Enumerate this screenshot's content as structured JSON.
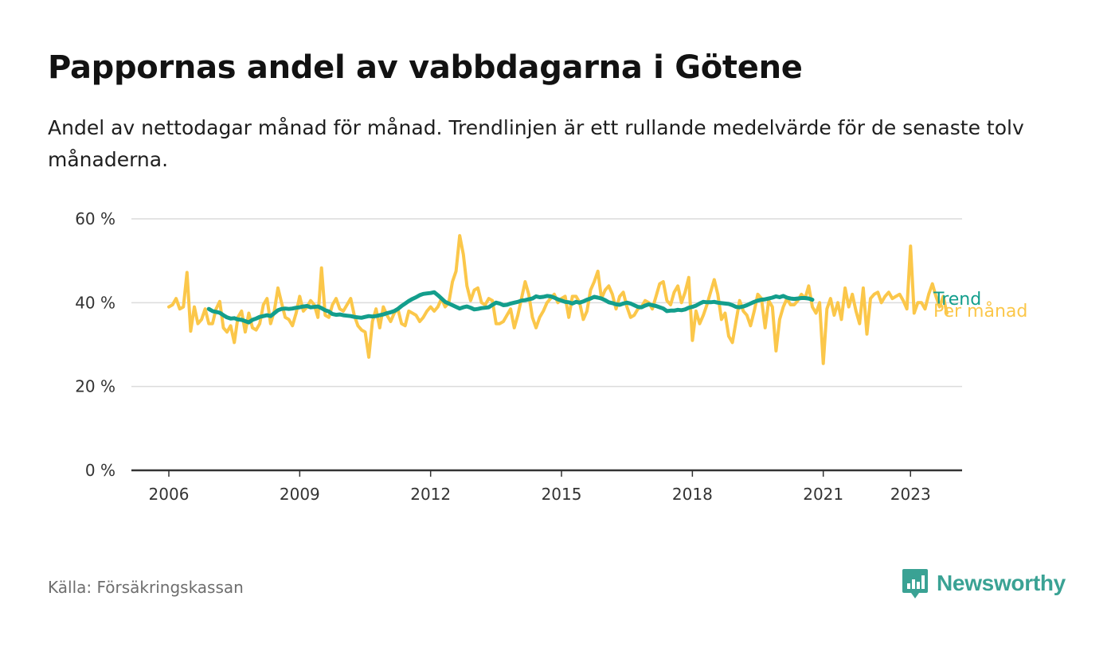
{
  "title": "Pappornas andel av vabbdagarna i Götene",
  "subtitle": "Andel av nettodagar månad för månad. Trendlinjen är ett rullande medelvärde för de senaste tolv månaderna.",
  "source": "Källa: Försäkringskassan",
  "brand": "Newsworthy",
  "colors": {
    "trend": "#139e8c",
    "monthly": "#fbc74a",
    "grid": "#dcdcdc",
    "axis": "#333333",
    "brand": "#3aa294"
  },
  "chart_data": {
    "type": "line",
    "x_start": "2006-01",
    "x_end": "2023-05",
    "ylim": [
      0,
      60
    ],
    "y_ticks": [
      {
        "value": 0,
        "label": "0 %"
      },
      {
        "value": 20,
        "label": "20 %"
      },
      {
        "value": 40,
        "label": "40 %"
      },
      {
        "value": 60,
        "label": "60 %"
      }
    ],
    "x_ticks": [
      {
        "value": "2006-01",
        "label": "2006"
      },
      {
        "value": "2009-01",
        "label": "2009"
      },
      {
        "value": "2012-01",
        "label": "2012"
      },
      {
        "value": "2015-01",
        "label": "2015"
      },
      {
        "value": "2018-01",
        "label": "2018"
      },
      {
        "value": "2021-01",
        "label": "2021"
      },
      {
        "value": "2023-01",
        "label": "2023"
      }
    ],
    "grid": true,
    "series": [
      {
        "name": "Per månad",
        "key": "monthly",
        "start": "2006-01",
        "values": [
          39,
          39.5,
          41,
          38.5,
          39,
          47.2,
          33.2,
          39,
          35,
          36,
          38.5,
          35,
          35,
          38.5,
          40.3,
          34,
          33,
          34.5,
          30.5,
          36.5,
          38,
          33,
          37.5,
          34,
          33.5,
          35,
          39.5,
          41,
          35,
          38,
          43.5,
          40,
          36.5,
          36,
          34.5,
          37.5,
          41.5,
          38,
          39,
          40.5,
          39.5,
          36.5,
          48.3,
          37,
          36.5,
          39.5,
          41,
          38.5,
          38,
          39.5,
          41,
          37,
          34.5,
          33.5,
          33,
          27,
          35.5,
          38.5,
          34,
          39,
          37,
          35.5,
          37.5,
          38.5,
          35,
          34.5,
          38,
          37.5,
          37,
          35.5,
          36.5,
          38,
          39,
          38,
          39,
          41,
          39,
          40,
          45,
          47.5,
          56,
          51.5,
          44,
          40.5,
          43,
          43.5,
          40,
          39.5,
          41,
          40.5,
          35,
          35,
          35.5,
          37,
          38.5,
          34,
          37,
          41,
          45,
          42,
          36.5,
          34,
          36.5,
          38,
          40,
          41,
          42,
          40,
          41,
          41.5,
          36.5,
          41.5,
          41.5,
          40,
          36,
          38,
          43,
          45,
          47.5,
          41,
          43,
          44,
          42,
          38.5,
          41.5,
          42.5,
          39,
          36.5,
          37,
          38.5,
          39,
          40.5,
          40,
          38.5,
          41.5,
          44.5,
          45,
          40.5,
          39.5,
          42.5,
          44,
          40,
          42.5,
          46,
          31,
          38,
          35,
          37,
          39.5,
          42.5,
          45.5,
          42,
          36,
          37.5,
          32,
          30.5,
          35.5,
          40.5,
          38,
          37,
          34.5,
          38,
          42,
          41,
          34,
          40.5,
          39,
          28.5,
          36,
          39,
          41,
          39.5,
          39.5,
          40.5,
          42,
          41,
          44,
          39,
          37.5,
          40,
          25.5,
          38.5,
          41,
          37,
          40,
          36,
          43.5,
          39,
          42,
          38,
          35,
          43.5,
          32.5,
          41,
          42,
          42.5,
          40,
          41.5,
          42.5,
          41,
          41.5,
          42,
          40.5,
          38.5,
          53.5,
          37.5,
          40,
          40,
          38.5,
          42,
          44.5,
          41.5,
          39,
          41.5,
          37.5
        ]
      },
      {
        "name": "Trend",
        "key": "trend",
        "start": "2006-12",
        "values": [
          38.5,
          38,
          37.8,
          37.6,
          37,
          36.5,
          36.2,
          36.3,
          36.0,
          35.9,
          35.6,
          35.3,
          35.9,
          36.2,
          36.6,
          36.8,
          37.0,
          36.8,
          37.5,
          38.2,
          38.5,
          38.6,
          38.5,
          38.6,
          38.8,
          38.9,
          39.1,
          39.2,
          38.9,
          39.0,
          39.1,
          38.7,
          38.2,
          37.9,
          37.3,
          37.1,
          37.2,
          37.0,
          36.9,
          36.8,
          36.6,
          36.5,
          36.4,
          36.6,
          36.8,
          36.7,
          36.8,
          37.0,
          37.2,
          37.5,
          37.7,
          38.0,
          38.5,
          39.2,
          39.8,
          40.4,
          40.9,
          41.3,
          41.8,
          42.1,
          42.2,
          42.3,
          42.5,
          41.8,
          41.0,
          40.2,
          39.8,
          39.4,
          39.0,
          38.6,
          38.9,
          39.1,
          38.8,
          38.4,
          38.5,
          38.7,
          38.8,
          38.9,
          39.5,
          40.0,
          39.8,
          39.4,
          39.5,
          39.8,
          40.0,
          40.2,
          40.5,
          40.6,
          40.8,
          41.0,
          41.5,
          41.3,
          41.4,
          41.6,
          41.5,
          41.2,
          40.8,
          40.5,
          40.2,
          40.1,
          39.8,
          40.2,
          40.0,
          40.3,
          40.7,
          41.0,
          41.4,
          41.2,
          41.0,
          40.6,
          40.1,
          39.9,
          39.6,
          39.5,
          39.8,
          40.0,
          39.8,
          39.4,
          39.0,
          38.9,
          39.3,
          39.6,
          39.4,
          39.2,
          38.9,
          38.6,
          38.0,
          38.1,
          38.1,
          38.3,
          38.2,
          38.4,
          38.8,
          39.0,
          39.3,
          39.8,
          40.2,
          40.1,
          40.1,
          40.2,
          40.0,
          39.9,
          39.8,
          39.7,
          39.4,
          39.0,
          38.9,
          39.1,
          39.4,
          39.8,
          40.2,
          40.5,
          40.7,
          40.8,
          41.0,
          41.2,
          41.5,
          41.3,
          41.6,
          41.2,
          41.0,
          40.9,
          41.0,
          41.1,
          41.1,
          41.0,
          40.7
        ]
      }
    ],
    "legend": [
      {
        "label": "Trend",
        "key": "trend"
      },
      {
        "label": "Per månad",
        "key": "monthly"
      }
    ]
  }
}
